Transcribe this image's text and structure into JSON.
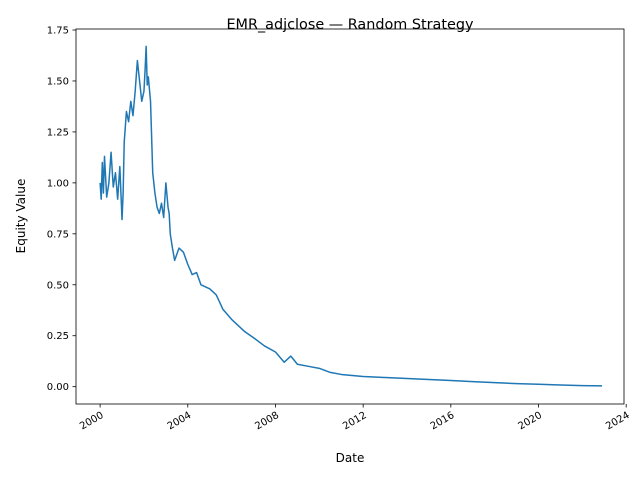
{
  "chart_data": {
    "type": "line",
    "title": "EMR_adjclose — Random Strategy",
    "xlabel": "Date",
    "ylabel": "Equity Value",
    "x_ticks": [
      2000,
      2004,
      2008,
      2012,
      2016,
      2020,
      2024
    ],
    "x_tick_labels": [
      "2000",
      "2004",
      "2008",
      "2012",
      "2016",
      "2020",
      "2024"
    ],
    "y_ticks": [
      0.0,
      0.25,
      0.5,
      0.75,
      1.0,
      1.25,
      1.5,
      1.75
    ],
    "y_tick_labels": [
      "0.00",
      "0.25",
      "0.50",
      "0.75",
      "1.00",
      "1.25",
      "1.50",
      "1.75"
    ],
    "xlim": [
      1998.9,
      2023.9
    ],
    "ylim": [
      -0.085,
      1.755
    ],
    "grid": false,
    "line_color": "#1f77b4",
    "series": [
      {
        "x": [
          2000.0,
          2000.05,
          2000.1,
          2000.15,
          2000.2,
          2000.3,
          2000.4,
          2000.5,
          2000.6,
          2000.7,
          2000.8,
          2000.9,
          2001.0,
          2001.05,
          2001.1,
          2001.2,
          2001.3,
          2001.4,
          2001.5,
          2001.6,
          2001.7,
          2001.8,
          2001.9,
          2002.0,
          2002.05,
          2002.1,
          2002.15,
          2002.2,
          2002.3,
          2002.4,
          2002.5,
          2002.6,
          2002.7,
          2002.8,
          2002.9,
          2003.0,
          2003.1,
          2003.15,
          2003.2,
          2003.3,
          2003.4,
          2003.5,
          2003.6,
          2003.8,
          2004.0,
          2004.2,
          2004.4,
          2004.6,
          2004.8,
          2005.0,
          2005.3,
          2005.6,
          2006.0,
          2006.3,
          2006.6,
          2007.0,
          2007.5,
          2008.0,
          2008.4,
          2008.7,
          2009.0,
          2009.5,
          2010.0,
          2010.5,
          2011.0,
          2011.5,
          2012.0,
          2013.0,
          2014.0,
          2015.0,
          2016.0,
          2017.0,
          2018.0,
          2019.0,
          2020.0,
          2021.0,
          2022.0,
          2022.9
        ],
        "y": [
          1.0,
          0.92,
          1.1,
          0.95,
          1.13,
          0.93,
          1.0,
          1.15,
          0.98,
          1.05,
          0.92,
          1.08,
          0.82,
          0.95,
          1.2,
          1.35,
          1.3,
          1.4,
          1.33,
          1.45,
          1.6,
          1.5,
          1.4,
          1.45,
          1.55,
          1.67,
          1.48,
          1.52,
          1.4,
          1.05,
          0.95,
          0.88,
          0.85,
          0.9,
          0.83,
          1.0,
          0.88,
          0.85,
          0.75,
          0.68,
          0.62,
          0.65,
          0.68,
          0.66,
          0.6,
          0.55,
          0.56,
          0.5,
          0.49,
          0.48,
          0.45,
          0.38,
          0.33,
          0.3,
          0.27,
          0.24,
          0.2,
          0.17,
          0.12,
          0.15,
          0.11,
          0.1,
          0.09,
          0.07,
          0.06,
          0.055,
          0.05,
          0.045,
          0.04,
          0.035,
          0.03,
          0.025,
          0.02,
          0.015,
          0.012,
          0.008,
          0.005,
          0.004
        ]
      }
    ]
  }
}
